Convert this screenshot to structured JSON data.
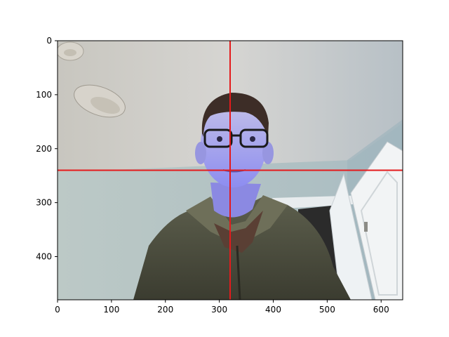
{
  "chart_data": {
    "type": "image",
    "title": "",
    "xlabel": "",
    "ylabel": "",
    "xlim": [
      0,
      640
    ],
    "ylim": [
      480,
      0
    ],
    "x_ticks": [
      0,
      100,
      200,
      300,
      400,
      500,
      600
    ],
    "y_ticks": [
      0,
      100,
      200,
      300,
      400
    ],
    "grid": false,
    "image_content": "webcam photo: person with glasses in a green zip sweater, room ceiling with lamp, open white door",
    "crosshair": {
      "color": "#e41a1c",
      "vertical_x": 320,
      "horizontal_y": 240
    }
  }
}
